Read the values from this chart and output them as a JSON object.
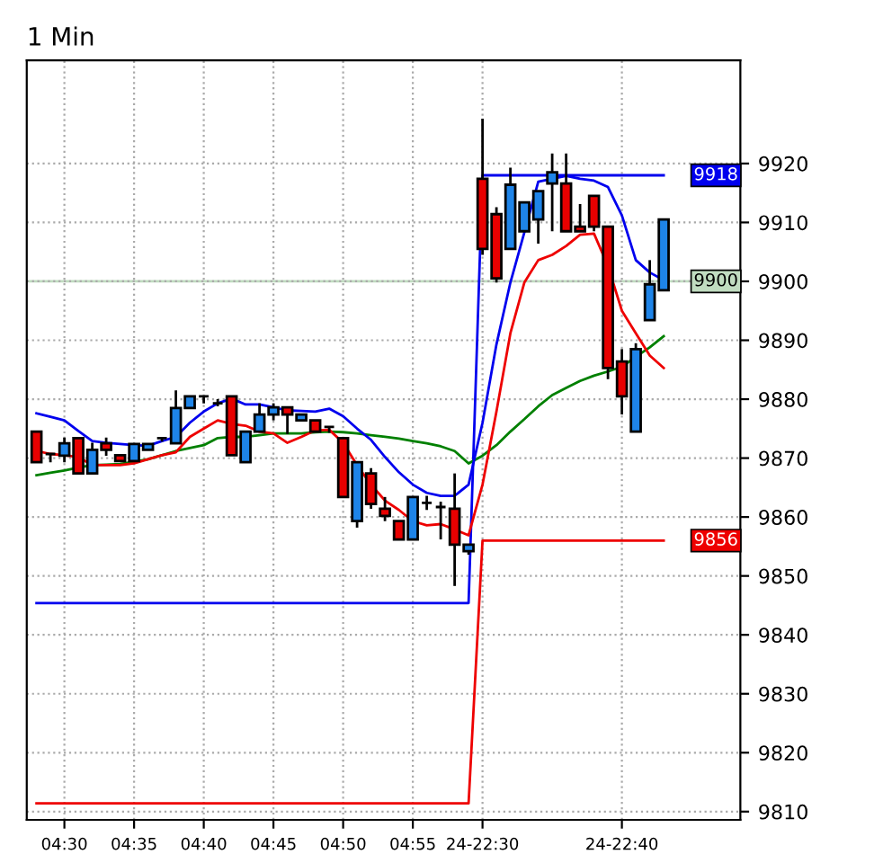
{
  "chart_data": {
    "type": "candlestick",
    "title": "1 Min",
    "categories": [
      null,
      null,
      "04:30",
      null,
      null,
      null,
      null,
      "04:35",
      null,
      null,
      null,
      null,
      "04:40",
      null,
      null,
      null,
      null,
      "04:45",
      null,
      null,
      null,
      null,
      "04:50",
      null,
      null,
      null,
      null,
      "04:55",
      null,
      null,
      null,
      null,
      "24-22:30",
      null,
      null,
      null,
      null,
      null,
      null,
      null,
      null,
      null,
      "24-22:40",
      null,
      null,
      null
    ],
    "ohlc": [
      [
        9874.5,
        9874.5,
        9869.3,
        9869.3
      ],
      [
        9870.7,
        9870.7,
        9869.3,
        9870.7
      ],
      [
        9870.4,
        9873.5,
        9869.3,
        9872.5
      ],
      [
        9873.4,
        9873.4,
        9867.4,
        9867.4
      ],
      [
        9867.4,
        9872.6,
        9867.4,
        9871.4
      ],
      [
        9872.5,
        9873.5,
        9870.4,
        9871.4
      ],
      [
        9870.5,
        9870.5,
        9869.5,
        9869.5
      ],
      [
        9869.5,
        9872.4,
        9869.5,
        9872.4
      ],
      [
        9871.4,
        9872.4,
        9871.4,
        9872.4
      ],
      [
        9873.4,
        9873.4,
        9872.8,
        9873.4
      ],
      [
        9872.5,
        9881.5,
        9872.5,
        9878.5
      ],
      [
        9878.5,
        9880.5,
        9878.5,
        9880.5
      ],
      [
        9880.5,
        9880.5,
        9879.3,
        9880.5
      ],
      [
        9879.3,
        9880.0,
        9878.8,
        9879.3
      ],
      [
        9880.5,
        9880.5,
        9870.5,
        9870.5
      ],
      [
        9869.3,
        9874.5,
        9869.3,
        9874.5
      ],
      [
        9874.5,
        9879.3,
        9874.5,
        9877.4
      ],
      [
        9877.4,
        9879.3,
        9876.4,
        9878.6
      ],
      [
        9878.6,
        9878.6,
        9874.1,
        9877.4
      ],
      [
        9876.4,
        9877.4,
        9876.4,
        9877.4
      ],
      [
        9876.4,
        9876.4,
        9874.5,
        9874.5
      ],
      [
        9875.3,
        9875.3,
        9874.3,
        9875.3
      ],
      [
        9873.4,
        9873.4,
        9863.4,
        9863.4
      ],
      [
        9859.3,
        9869.3,
        9858.2,
        9869.3
      ],
      [
        9867.4,
        9868.3,
        9861.4,
        9862.2
      ],
      [
        9861.4,
        9863.4,
        9859.3,
        9860.2
      ],
      [
        9859.3,
        9859.3,
        9856.2,
        9856.2
      ],
      [
        9856.2,
        9863.4,
        9856.2,
        9863.4
      ],
      [
        9862.4,
        9863.6,
        9861.2,
        9862.4
      ],
      [
        9861.7,
        9862.6,
        9856.2,
        9861.7
      ],
      [
        9861.4,
        9867.4,
        9848.3,
        9855.3
      ],
      [
        9854.2,
        9855.3,
        9853.6,
        9855.3
      ],
      [
        9917.4,
        9927.6,
        9904.5,
        9905.5
      ],
      [
        9911.4,
        9912.6,
        9899.8,
        9900.5
      ],
      [
        9905.5,
        9919.3,
        9905.5,
        9916.4
      ],
      [
        9908.5,
        9913.4,
        9908.5,
        9913.4
      ],
      [
        9910.5,
        9915.3,
        9906.4,
        9915.3
      ],
      [
        9916.6,
        9921.7,
        9908.5,
        9918.5
      ],
      [
        9916.6,
        9921.7,
        9908.5,
        9908.5
      ],
      [
        9909.3,
        9913.1,
        9908.5,
        9908.5
      ],
      [
        9914.5,
        9914.5,
        9908.5,
        9909.3
      ],
      [
        9909.3,
        9909.3,
        9883.4,
        9885.3
      ],
      [
        9886.4,
        9888.5,
        9877.4,
        9880.5
      ],
      [
        9874.5,
        9889.5,
        9874.5,
        9888.5
      ],
      [
        9893.4,
        9903.6,
        9893.4,
        9899.5
      ],
      [
        9898.5,
        9910.5,
        9898.5,
        9910.5
      ]
    ],
    "series": [
      {
        "type": "line",
        "color": "#0000ee",
        "values": [
          9845.4,
          9845.4,
          9845.4,
          9845.4,
          9845.4,
          9845.4,
          9845.4,
          9845.4,
          9845.4,
          9845.4,
          9845.4,
          9845.4,
          9845.4,
          9845.4,
          9845.4,
          9845.4,
          9845.4,
          9845.4,
          9845.4,
          9845.4,
          9845.4,
          9845.4,
          9845.4,
          9845.4,
          9845.4,
          9845.4,
          9845.4,
          9845.4,
          9845.4,
          9845.4,
          9845.4,
          9845.4,
          9918,
          9918,
          9918,
          9918,
          9918,
          9918,
          9918,
          9918,
          9918,
          9918,
          9918,
          9918,
          9918,
          9918
        ],
        "value_labels": [
          null,
          null,
          null,
          null,
          null,
          null,
          null,
          null,
          null,
          null,
          null,
          null,
          null,
          null,
          null,
          null,
          null,
          null,
          null,
          null,
          null,
          null,
          null,
          null,
          null,
          null,
          null,
          null,
          null,
          null,
          null,
          null,
          null,
          null,
          null,
          null,
          null,
          null,
          null,
          null,
          null,
          null,
          null,
          null,
          null,
          "9918"
        ]
      },
      {
        "type": "line",
        "color": "#ee0000",
        "values": [
          9811.4,
          9811.4,
          9811.4,
          9811.4,
          9811.4,
          9811.4,
          9811.4,
          9811.4,
          9811.4,
          9811.4,
          9811.4,
          9811.4,
          9811.4,
          9811.4,
          9811.4,
          9811.4,
          9811.4,
          9811.4,
          9811.4,
          9811.4,
          9811.4,
          9811.4,
          9811.4,
          9811.4,
          9811.4,
          9811.4,
          9811.4,
          9811.4,
          9811.4,
          9811.4,
          9811.4,
          9811.4,
          9856,
          9856,
          9856,
          9856,
          9856,
          9856,
          9856,
          9856,
          9856,
          9856,
          9856,
          9856,
          9856,
          9856
        ],
        "value_labels": [
          null,
          null,
          null,
          null,
          null,
          null,
          null,
          null,
          null,
          null,
          null,
          null,
          null,
          null,
          null,
          null,
          null,
          null,
          null,
          null,
          null,
          null,
          null,
          null,
          null,
          null,
          null,
          null,
          null,
          null,
          null,
          null,
          null,
          null,
          null,
          null,
          null,
          null,
          null,
          null,
          null,
          null,
          null,
          null,
          null,
          "9856"
        ]
      },
      {
        "type": "line",
        "color": "#008000",
        "values": [
          9867.1,
          9867.5,
          9867.9,
          9868.4,
          9868.8,
          9868.9,
          9869.0,
          9869.4,
          9869.8,
          9870.5,
          9871.2,
          9871.7,
          9872.2,
          9873.4,
          9873.6,
          9873.6,
          9873.9,
          9874.2,
          9874.2,
          9874.2,
          9874.4,
          9874.5,
          9874.4,
          9874.2,
          9873.9,
          9873.6,
          9873.3,
          9872.9,
          9872.5,
          9872.0,
          9871.2,
          9869.1,
          9870.4,
          9872.2,
          9874.5,
          9876.6,
          9878.8,
          9880.7,
          9881.9,
          9883.1,
          9884.0,
          9884.7,
          9885.5,
          9887.2,
          9888.8,
          9890.7
        ]
      },
      {
        "type": "line",
        "color": "#ee0000",
        "values": [
          9871.2,
          9870.7,
          9870.5,
          9870.2,
          9868.8,
          9868.8,
          9868.8,
          9869.1,
          9869.8,
          9870.5,
          9871.0,
          9873.6,
          9875.0,
          9876.4,
          9875.8,
          9875.5,
          9874.5,
          9874.2,
          9872.6,
          9873.6,
          9874.7,
          9874.8,
          9872.6,
          9868.8,
          9865.5,
          9862.8,
          9861.2,
          9859.3,
          9858.6,
          9858.8,
          9857.9,
          9856.9,
          9865.5,
          9877.9,
          9891.2,
          9899.8,
          9903.6,
          9904.5,
          9906.0,
          9907.9,
          9908.1,
          9902.6,
          9895.0,
          9891.2,
          9887.4,
          9885.3
        ]
      },
      {
        "type": "line",
        "color": "#0000ee",
        "values": [
          9877.6,
          9877.0,
          9876.4,
          9874.6,
          9872.9,
          9872.6,
          9872.4,
          9872.2,
          9872.1,
          9872.9,
          9873.6,
          9876.0,
          9877.9,
          9879.3,
          9880.1,
          9879.1,
          9879.1,
          9878.6,
          9878.1,
          9878.0,
          9877.9,
          9878.4,
          9877.1,
          9875.0,
          9873.1,
          9870.2,
          9867.6,
          9865.5,
          9864.1,
          9863.6,
          9863.6,
          9865.5,
          9876.0,
          9889.3,
          9899.8,
          9908.3,
          9916.9,
          9917.4,
          9917.9,
          9917.4,
          9917.1,
          9916.0,
          9911.2,
          9903.6,
          9901.5,
          9900.2
        ]
      }
    ],
    "ref_lines": [
      {
        "axis": "y",
        "value": 9900,
        "label": "9900",
        "color": "#c0dcc0"
      }
    ],
    "ylim": [
      9808.6,
      9937.5
    ],
    "yticks": [
      9810,
      9820,
      9830,
      9840,
      9850,
      9860,
      9870,
      9880,
      9890,
      9900,
      9910,
      9920
    ],
    "grid": true
  }
}
